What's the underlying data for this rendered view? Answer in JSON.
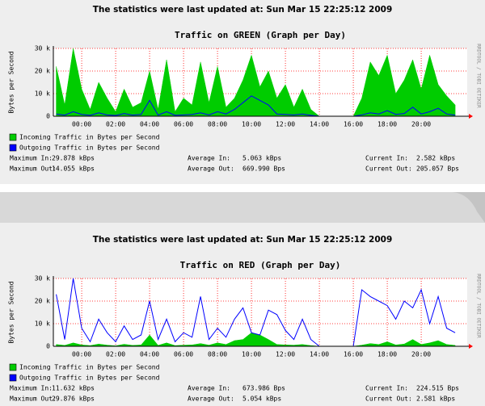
{
  "headings": [
    "The statistics were last updated at: Sun Mar 15 22:25:12 2009",
    "The statistics were last updated at: Sun Mar 15 22:25:12 2009"
  ],
  "chart_data": [
    {
      "type": "line",
      "title": "Traffic on GREEN (Graph per Day)",
      "y_label": "Bytes per Second",
      "side_label": "RRDTOOL / TOBI OETIKER",
      "x": [
        -1.5,
        -1,
        -0.5,
        0,
        0.5,
        1,
        1.5,
        2,
        2.5,
        3,
        3.5,
        4,
        4.5,
        5,
        5.5,
        6,
        6.5,
        7,
        7.5,
        8,
        8.5,
        9,
        9.5,
        10,
        10.5,
        11,
        11.5,
        12,
        12.5,
        13,
        13.5,
        14,
        14.5,
        15,
        15.5,
        16,
        16.5,
        17,
        17.5,
        18,
        18.5,
        19,
        19.5,
        20,
        20.5,
        21,
        21.5,
        22
      ],
      "xlim": [
        -1.67,
        22.71
      ],
      "xticks": [
        {
          "value": 0,
          "label": "00:00"
        },
        {
          "value": 2,
          "label": "02:00"
        },
        {
          "value": 4,
          "label": "04:00"
        },
        {
          "value": 6,
          "label": "06:00"
        },
        {
          "value": 8,
          "label": "08:00"
        },
        {
          "value": 10,
          "label": "10:00"
        },
        {
          "value": 12,
          "label": "12:00"
        },
        {
          "value": 14,
          "label": "14:00"
        },
        {
          "value": 16,
          "label": "16:00"
        },
        {
          "value": 18,
          "label": "18:00"
        },
        {
          "value": 20,
          "label": "20:00"
        }
      ],
      "ylim": [
        0,
        30000
      ],
      "yticks": [
        0,
        {
          "value": 10000,
          "label": "10 k"
        },
        {
          "value": 20000,
          "label": "20 k"
        },
        {
          "value": 30000,
          "label": "30 k"
        }
      ],
      "grid": true,
      "series": [
        {
          "name": "Incoming Traffic in Bytes per Second",
          "color": "#00cc00",
          "style": "area",
          "values": [
            22000,
            5000,
            30000,
            12000,
            3000,
            15000,
            8000,
            2000,
            12000,
            4000,
            6000,
            20000,
            3000,
            25000,
            2000,
            8000,
            5000,
            24000,
            6000,
            22000,
            4000,
            8000,
            16000,
            27000,
            13000,
            20000,
            8000,
            14000,
            4000,
            12000,
            3000,
            0,
            0,
            0,
            0,
            0,
            8000,
            24000,
            18000,
            27000,
            10000,
            16000,
            25000,
            12000,
            27000,
            14000,
            9000,
            5000
          ]
        },
        {
          "name": "Outgoing Traffic in Bytes per Second",
          "color": "#0000ff",
          "style": "line",
          "values": [
            1000,
            500,
            2000,
            800,
            400,
            1500,
            600,
            300,
            1200,
            500,
            800,
            7000,
            500,
            2000,
            400,
            600,
            800,
            1500,
            600,
            2000,
            1000,
            3000,
            6000,
            9000,
            7000,
            5000,
            1000,
            800,
            600,
            1000,
            400,
            0,
            0,
            0,
            0,
            0,
            600,
            1500,
            1000,
            2500,
            800,
            1200,
            4000,
            1000,
            2000,
            3500,
            1000,
            500
          ]
        }
      ],
      "stats": [
        [
          {
            "label": "Maximum In:",
            "value": "29.878 kBps"
          },
          {
            "label": "Average In:",
            "value": "5.063 kBps"
          },
          {
            "label": "Current In:",
            "value": "2.582 kBps"
          }
        ],
        [
          {
            "label": "Maximum Out:",
            "value": "14.055 kBps"
          },
          {
            "label": "Average Out:",
            "value": "669.990  Bps"
          },
          {
            "label": "Current Out:",
            "value": "205.057  Bps"
          }
        ]
      ]
    },
    {
      "type": "line",
      "title": "Traffic on RED (Graph per Day)",
      "y_label": "Bytes per Second",
      "side_label": "RRDTOOL / TOBI OETIKER",
      "x": [
        -1.5,
        -1,
        -0.5,
        0,
        0.5,
        1,
        1.5,
        2,
        2.5,
        3,
        3.5,
        4,
        4.5,
        5,
        5.5,
        6,
        6.5,
        7,
        7.5,
        8,
        8.5,
        9,
        9.5,
        10,
        10.5,
        11,
        11.5,
        12,
        12.5,
        13,
        13.5,
        14,
        14.5,
        15,
        15.5,
        16,
        16.5,
        17,
        17.5,
        18,
        18.5,
        19,
        19.5,
        20,
        20.5,
        21,
        21.5,
        22
      ],
      "xlim": [
        -1.67,
        22.71
      ],
      "xticks": [
        {
          "value": 0,
          "label": "00:00"
        },
        {
          "value": 2,
          "label": "02:00"
        },
        {
          "value": 4,
          "label": "04:00"
        },
        {
          "value": 6,
          "label": "06:00"
        },
        {
          "value": 8,
          "label": "08:00"
        },
        {
          "value": 10,
          "label": "10:00"
        },
        {
          "value": 12,
          "label": "12:00"
        },
        {
          "value": 14,
          "label": "14:00"
        },
        {
          "value": 16,
          "label": "16:00"
        },
        {
          "value": 18,
          "label": "18:00"
        },
        {
          "value": 20,
          "label": "20:00"
        }
      ],
      "ylim": [
        0,
        30000
      ],
      "yticks": [
        0,
        {
          "value": 10000,
          "label": "10 k"
        },
        {
          "value": 20000,
          "label": "20 k"
        },
        {
          "value": 30000,
          "label": "30 k"
        }
      ],
      "grid": true,
      "series": [
        {
          "name": "Incoming Traffic in Bytes per Second",
          "color": "#00cc00",
          "style": "area",
          "values": [
            800,
            400,
            1500,
            600,
            300,
            1000,
            500,
            200,
            900,
            400,
            600,
            5000,
            400,
            1500,
            300,
            500,
            600,
            1200,
            500,
            1500,
            800,
            2500,
            3000,
            6000,
            5000,
            3000,
            800,
            600,
            500,
            800,
            300,
            0,
            0,
            0,
            0,
            0,
            500,
            1200,
            800,
            2000,
            600,
            1000,
            3000,
            800,
            1500,
            2500,
            800,
            400
          ]
        },
        {
          "name": "Outgoing Traffic in Bytes per Second",
          "color": "#0000ff",
          "style": "line",
          "values": [
            23000,
            3000,
            30000,
            8000,
            2000,
            12000,
            6000,
            2000,
            9000,
            3000,
            5000,
            20000,
            3000,
            12000,
            2000,
            6000,
            4000,
            22000,
            3000,
            8000,
            4000,
            12000,
            17000,
            6000,
            5000,
            16000,
            14000,
            7000,
            3000,
            12000,
            3000,
            0,
            0,
            0,
            0,
            0,
            25000,
            22000,
            20000,
            18000,
            12000,
            20000,
            17000,
            25000,
            10000,
            22000,
            8000,
            6000
          ]
        }
      ],
      "stats": [
        [
          {
            "label": "Maximum In:",
            "value": "11.632 kBps"
          },
          {
            "label": "Average In:",
            "value": "673.986  Bps"
          },
          {
            "label": "Current In:",
            "value": "224.515  Bps"
          }
        ],
        [
          {
            "label": "Maximum Out:",
            "value": "29.876 kBps"
          },
          {
            "label": "Average Out:",
            "value": "5.054 kBps"
          },
          {
            "label": "Current Out:",
            "value": "2.581 kBps"
          }
        ]
      ]
    }
  ]
}
